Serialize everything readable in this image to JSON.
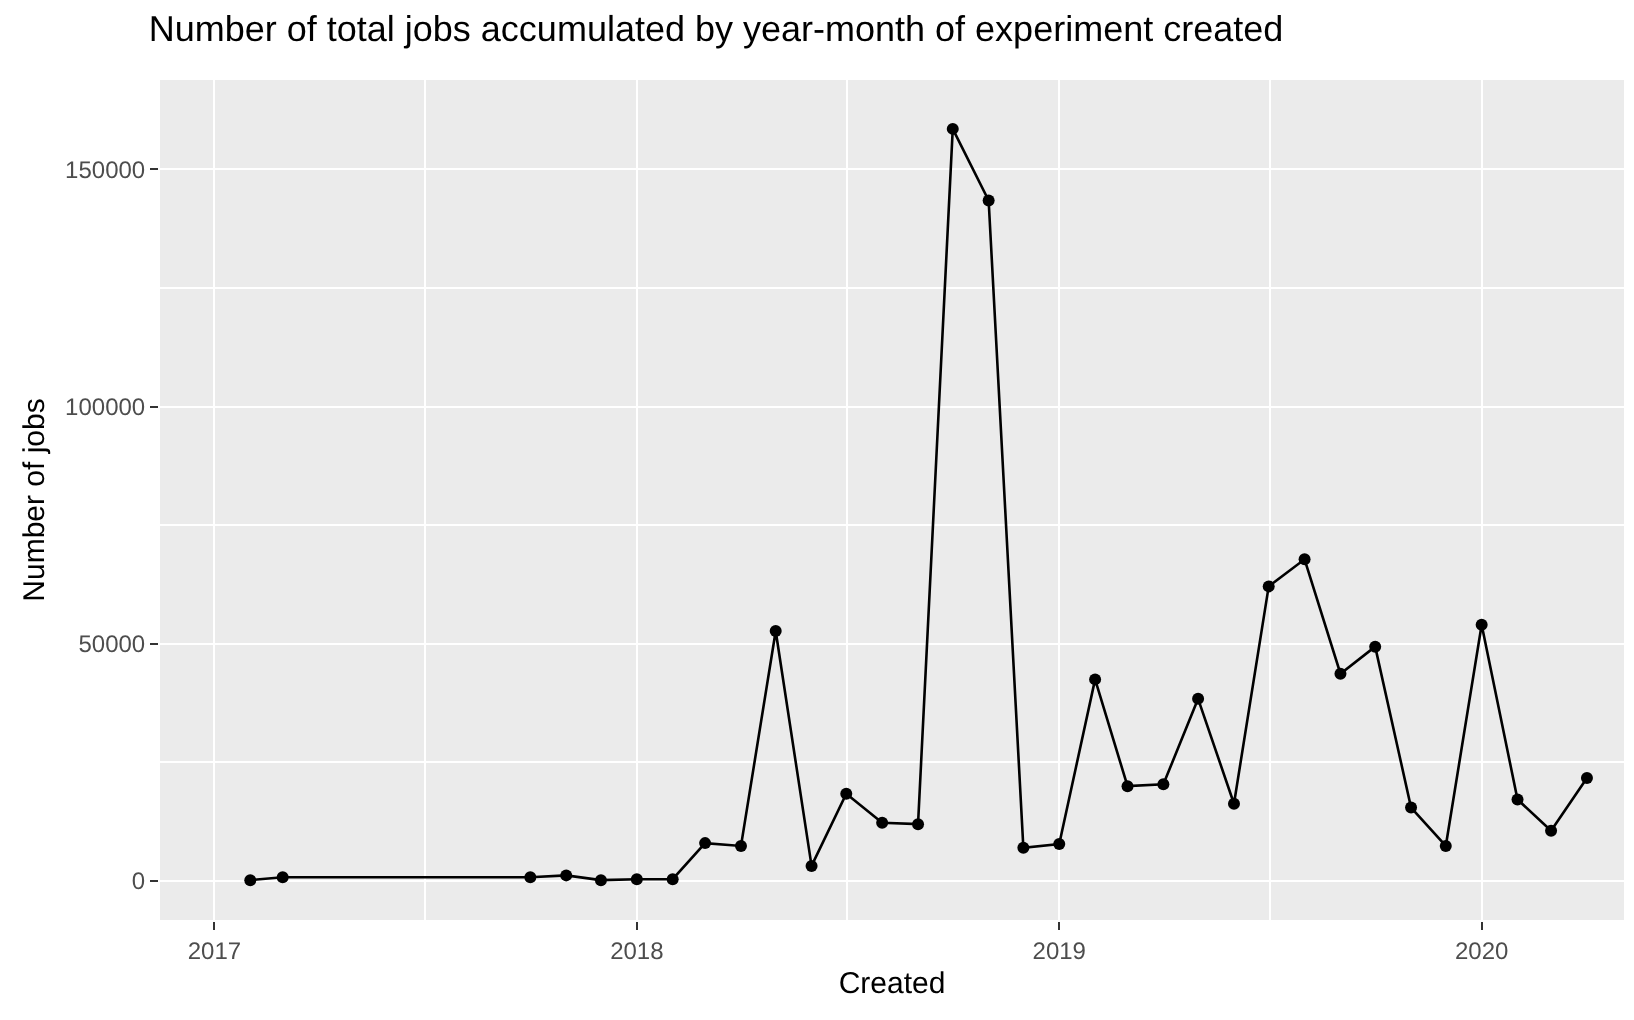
{
  "chart_data": {
    "type": "line",
    "title": "Number of total jobs accumulated by year-month of experiment created",
    "xlabel": "Created",
    "ylabel": "Number of jobs",
    "x": [
      "2017-02",
      "2017-03",
      "2017-10",
      "2017-11",
      "2017-12",
      "2018-01",
      "2018-02",
      "2018-03",
      "2018-04",
      "2018-05",
      "2018-06",
      "2018-07",
      "2018-08",
      "2018-09",
      "2018-10",
      "2018-11",
      "2018-12",
      "2019-01",
      "2019-02",
      "2019-03",
      "2019-04",
      "2019-05",
      "2019-06",
      "2019-07",
      "2019-08",
      "2019-09",
      "2019-10",
      "2019-11",
      "2019-12",
      "2020-01",
      "2020-02",
      "2020-03",
      "2020-04"
    ],
    "series": [
      {
        "color": "#000000",
        "values": [
          200,
          800,
          800,
          1200,
          200,
          400,
          400,
          8000,
          7400,
          52700,
          3200,
          18400,
          12300,
          12000,
          158500,
          143400,
          7000,
          7800,
          42500,
          20000,
          20400,
          38400,
          16300,
          62100,
          67800,
          43700,
          49400,
          15500,
          7400,
          54000,
          17200,
          10600,
          21700
        ]
      }
    ],
    "xlim": [
      "2016-11-15",
      "2020-05-03"
    ],
    "xticks": [
      {
        "value": "2017-01-01",
        "label": "2017"
      },
      {
        "value": "2018-01-01",
        "label": "2018"
      },
      {
        "value": "2019-01-01",
        "label": "2019"
      },
      {
        "value": "2020-01-01",
        "label": "2020"
      }
    ],
    "ylim": [
      -8200,
      168800
    ],
    "yticks": [
      0,
      50000,
      100000,
      150000
    ],
    "grid": true,
    "marker": "circle",
    "line_style": "solid"
  }
}
